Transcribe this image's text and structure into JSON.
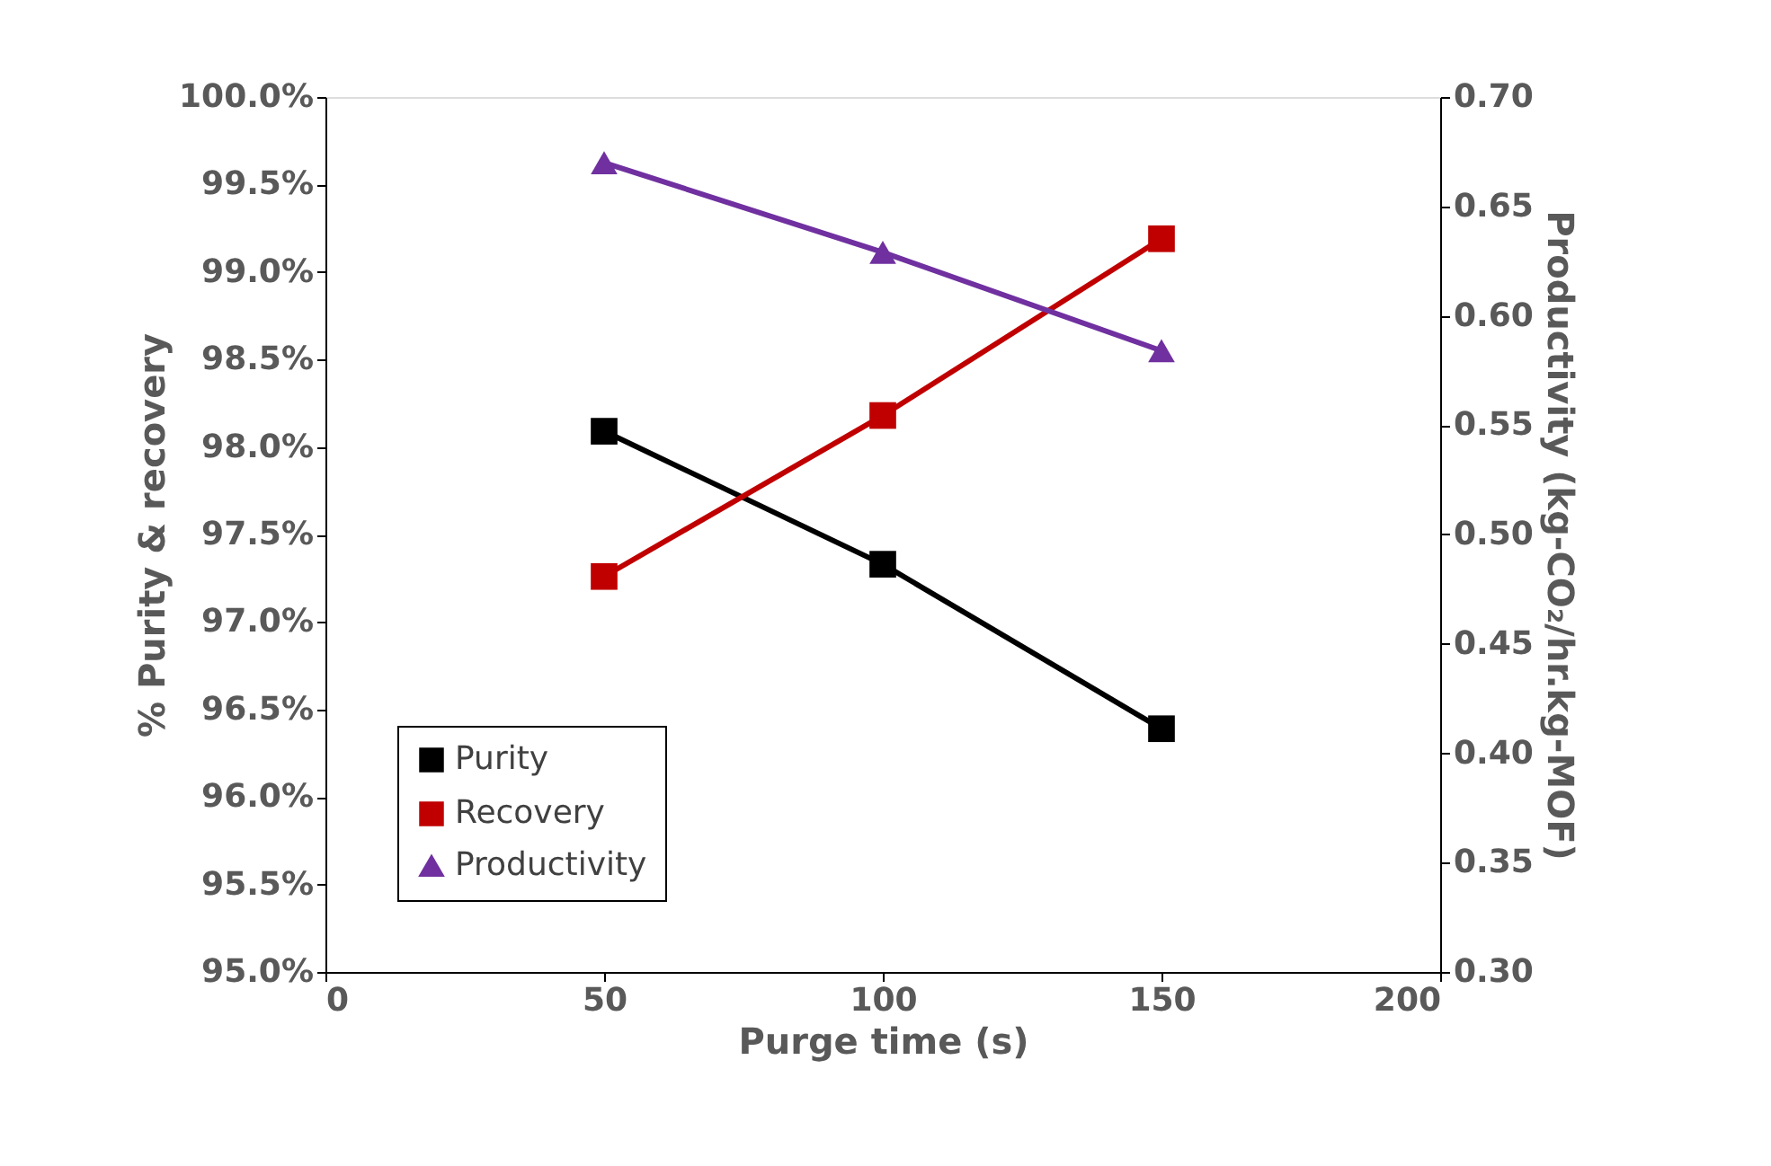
{
  "chart_data": {
    "type": "line",
    "xlabel": "Purge time (s)",
    "ylabel": "% Purity & recovery",
    "y2label": "Productivity (kg-CO₂/hr.kg-MOF)",
    "x": [
      50,
      100,
      150
    ],
    "series": [
      {
        "name": "Purity",
        "color": "#000000",
        "marker": "square",
        "values": [
          98.09,
          97.33,
          96.39
        ]
      },
      {
        "name": "Recovery",
        "color": "#c00000",
        "marker": "square",
        "values": [
          97.26,
          98.18,
          99.19
        ]
      },
      {
        "name": "Productivity",
        "color": "#7030a0",
        "marker": "triangle",
        "axis": "y2",
        "values": [
          0.67,
          0.629,
          0.584
        ]
      }
    ],
    "xlim": [
      0,
      200
    ],
    "xticks": [
      0,
      50,
      100,
      150,
      200
    ],
    "ylim": [
      95.0,
      100.0
    ],
    "yticks": [
      {
        "value": 95.0,
        "label": "95.0%"
      },
      {
        "value": 95.5,
        "label": "95.5%"
      },
      {
        "value": 96.0,
        "label": "96.0%"
      },
      {
        "value": 96.5,
        "label": "96.5%"
      },
      {
        "value": 97.0,
        "label": "97.0%"
      },
      {
        "value": 97.5,
        "label": "97.5%"
      },
      {
        "value": 98.0,
        "label": "98.0%"
      },
      {
        "value": 98.5,
        "label": "98.5%"
      },
      {
        "value": 99.0,
        "label": "99.0%"
      },
      {
        "value": 99.5,
        "label": "99.5%"
      },
      {
        "value": 100.0,
        "label": "100.0%"
      }
    ],
    "y2lim": [
      0.3,
      0.7
    ],
    "y2ticks": [
      {
        "value": 0.3,
        "label": "0.30"
      },
      {
        "value": 0.35,
        "label": "0.35"
      },
      {
        "value": 0.4,
        "label": "0.40"
      },
      {
        "value": 0.45,
        "label": "0.45"
      },
      {
        "value": 0.5,
        "label": "0.50"
      },
      {
        "value": 0.55,
        "label": "0.55"
      },
      {
        "value": 0.6,
        "label": "0.60"
      },
      {
        "value": 0.65,
        "label": "0.65"
      },
      {
        "value": 0.7,
        "label": "0.70"
      }
    ],
    "grid": false,
    "legend": "bottom left",
    "line_style": "solid"
  }
}
